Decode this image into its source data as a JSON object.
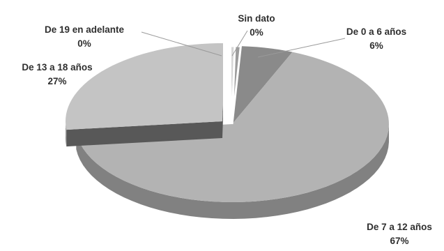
{
  "chart_data": {
    "type": "pie",
    "style": "3d-exploded",
    "title": "",
    "slices": [
      {
        "label": "Sin dato",
        "value": 0,
        "percent_label": "0%",
        "color": "#d6d6d6"
      },
      {
        "label": "De 0 a 6 años",
        "value": 6,
        "percent_label": "6%",
        "color": "#8a8a8a"
      },
      {
        "label": "De 7 a 12 años",
        "value": 67,
        "percent_label": "67%",
        "color": "#b3b3b3"
      },
      {
        "label": "De 13 a 18 años",
        "value": 27,
        "percent_label": "27%",
        "color": "#c4c4c4"
      },
      {
        "label": "De 19 en adelante",
        "value": 0,
        "percent_label": "0%",
        "color": "#9c9c9c"
      }
    ],
    "legend": "none"
  }
}
